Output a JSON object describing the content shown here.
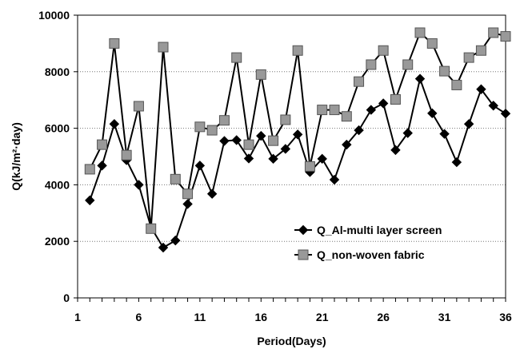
{
  "chart_data": {
    "type": "line",
    "xlabel": "Period(Days)",
    "ylabel": "Q(kJ/m²·day)",
    "xlim": [
      1,
      36
    ],
    "ylim": [
      0,
      10000
    ],
    "x_ticks": [
      "1",
      "6",
      "11",
      "16",
      "21",
      "26",
      "31",
      "36"
    ],
    "y_ticks": [
      "0",
      "2000",
      "4000",
      "6000",
      "8000",
      "10000"
    ],
    "grid": "horizontal dotted",
    "legend_position": "lower-right",
    "x": [
      2,
      3,
      4,
      5,
      6,
      7,
      8,
      9,
      10,
      11,
      12,
      13,
      14,
      15,
      16,
      17,
      18,
      19,
      20,
      21,
      22,
      23,
      24,
      25,
      26,
      27,
      28,
      29,
      30,
      31,
      32,
      33,
      34,
      35,
      36
    ],
    "series": [
      {
        "name": "Q_Al-multi layer screen",
        "marker": "diamond",
        "color": "#000000",
        "values": [
          3450,
          4680,
          6150,
          4870,
          4000,
          2500,
          1780,
          2030,
          3320,
          4680,
          3680,
          5550,
          5580,
          4930,
          5730,
          4920,
          5270,
          5780,
          4450,
          4920,
          4180,
          5420,
          5930,
          6650,
          6880,
          5230,
          5830,
          7750,
          6530,
          5800,
          4800,
          6150,
          7380,
          6800,
          6520
        ]
      },
      {
        "name": "Q_non-woven fabric",
        "marker": "square",
        "color": "#999999",
        "values": [
          4550,
          5420,
          9000,
          5050,
          6780,
          2450,
          8870,
          4200,
          3680,
          6050,
          5930,
          6280,
          8500,
          5420,
          7900,
          5560,
          6300,
          8750,
          4650,
          6650,
          6650,
          6420,
          7650,
          8250,
          8750,
          7020,
          8250,
          9380,
          9000,
          8020,
          7530,
          8500,
          8750,
          9380,
          9250
        ]
      }
    ]
  }
}
